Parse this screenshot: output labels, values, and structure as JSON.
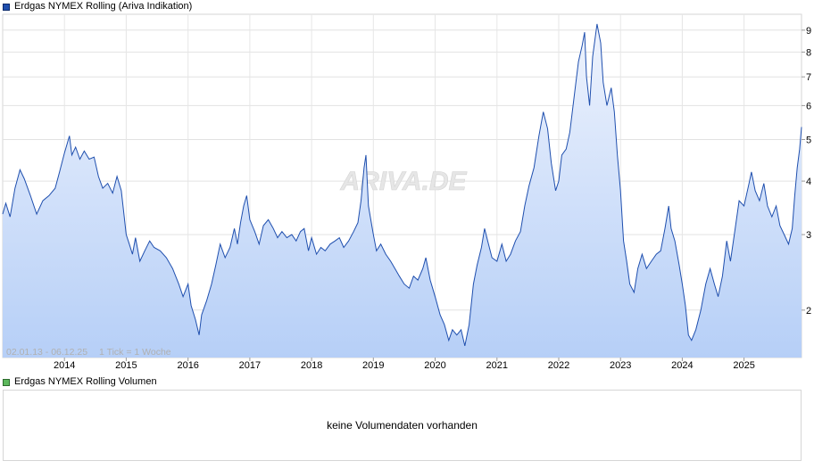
{
  "legend": {
    "price_label": "Erdgas NYMEX Rolling (Ariva Indikation)",
    "price_color": "#1f4fae",
    "volume_label": "Erdgas NYMEX Rolling Volumen",
    "volume_color": "#5cb85c"
  },
  "info": {
    "date_range": "02.01.13 - 06.12.25",
    "tick_info": "1 Tick = 1 Woche"
  },
  "watermark": "ARIVA.DE",
  "volume": {
    "message": "keine Volumendaten vorhanden"
  },
  "chart_data": {
    "type": "area",
    "title": "Erdgas NYMEX Rolling (Ariva Indikation)",
    "y_scale": "log",
    "ylim": [
      1.55,
      9.8
    ],
    "xlim": [
      2013.0,
      2025.93
    ],
    "y_ticks": [
      2,
      3,
      4,
      5,
      6,
      7,
      8,
      9
    ],
    "x_ticks": [
      {
        "label": "2014",
        "x": 2014
      },
      {
        "label": "2015",
        "x": 2015
      },
      {
        "label": "2016",
        "x": 2016
      },
      {
        "label": "2017",
        "x": 2017
      },
      {
        "label": "2018",
        "x": 2018
      },
      {
        "label": "2019",
        "x": 2019
      },
      {
        "label": "2020",
        "x": 2020
      },
      {
        "label": "2021",
        "x": 2021
      },
      {
        "label": "2022",
        "x": 2022
      },
      {
        "label": "2023",
        "x": 2023
      },
      {
        "label": "2024",
        "x": 2024
      },
      {
        "label": "2025",
        "x": 2025
      }
    ],
    "grid": true,
    "series": [
      {
        "name": "Erdgas NYMEX Rolling",
        "color": "#1f4fae",
        "points": [
          [
            2013.0,
            3.35
          ],
          [
            2013.05,
            3.55
          ],
          [
            2013.12,
            3.3
          ],
          [
            2013.2,
            3.85
          ],
          [
            2013.28,
            4.25
          ],
          [
            2013.35,
            4.05
          ],
          [
            2013.45,
            3.7
          ],
          [
            2013.55,
            3.35
          ],
          [
            2013.65,
            3.6
          ],
          [
            2013.75,
            3.7
          ],
          [
            2013.85,
            3.85
          ],
          [
            2013.92,
            4.2
          ],
          [
            2014.0,
            4.65
          ],
          [
            2014.08,
            5.1
          ],
          [
            2014.12,
            4.6
          ],
          [
            2014.18,
            4.8
          ],
          [
            2014.25,
            4.5
          ],
          [
            2014.32,
            4.7
          ],
          [
            2014.4,
            4.5
          ],
          [
            2014.48,
            4.55
          ],
          [
            2014.55,
            4.1
          ],
          [
            2014.62,
            3.85
          ],
          [
            2014.7,
            3.95
          ],
          [
            2014.78,
            3.75
          ],
          [
            2014.85,
            4.1
          ],
          [
            2014.92,
            3.8
          ],
          [
            2015.0,
            3.0
          ],
          [
            2015.05,
            2.85
          ],
          [
            2015.1,
            2.7
          ],
          [
            2015.15,
            2.95
          ],
          [
            2015.22,
            2.6
          ],
          [
            2015.3,
            2.75
          ],
          [
            2015.38,
            2.9
          ],
          [
            2015.45,
            2.8
          ],
          [
            2015.55,
            2.75
          ],
          [
            2015.65,
            2.65
          ],
          [
            2015.75,
            2.5
          ],
          [
            2015.85,
            2.3
          ],
          [
            2015.92,
            2.15
          ],
          [
            2016.0,
            2.3
          ],
          [
            2016.05,
            2.05
          ],
          [
            2016.12,
            1.9
          ],
          [
            2016.18,
            1.75
          ],
          [
            2016.22,
            1.95
          ],
          [
            2016.3,
            2.1
          ],
          [
            2016.38,
            2.3
          ],
          [
            2016.45,
            2.55
          ],
          [
            2016.52,
            2.85
          ],
          [
            2016.6,
            2.65
          ],
          [
            2016.68,
            2.8
          ],
          [
            2016.75,
            3.1
          ],
          [
            2016.8,
            2.85
          ],
          [
            2016.85,
            3.2
          ],
          [
            2016.9,
            3.5
          ],
          [
            2016.95,
            3.7
          ],
          [
            2017.0,
            3.25
          ],
          [
            2017.08,
            3.05
          ],
          [
            2017.15,
            2.85
          ],
          [
            2017.22,
            3.15
          ],
          [
            2017.3,
            3.25
          ],
          [
            2017.38,
            3.1
          ],
          [
            2017.45,
            2.95
          ],
          [
            2017.52,
            3.05
          ],
          [
            2017.6,
            2.95
          ],
          [
            2017.68,
            3.0
          ],
          [
            2017.75,
            2.9
          ],
          [
            2017.82,
            3.05
          ],
          [
            2017.88,
            3.1
          ],
          [
            2017.95,
            2.75
          ],
          [
            2018.0,
            2.95
          ],
          [
            2018.08,
            2.7
          ],
          [
            2018.15,
            2.8
          ],
          [
            2018.22,
            2.75
          ],
          [
            2018.3,
            2.85
          ],
          [
            2018.38,
            2.9
          ],
          [
            2018.45,
            2.95
          ],
          [
            2018.52,
            2.8
          ],
          [
            2018.6,
            2.9
          ],
          [
            2018.68,
            3.05
          ],
          [
            2018.75,
            3.2
          ],
          [
            2018.8,
            3.6
          ],
          [
            2018.85,
            4.3
          ],
          [
            2018.88,
            4.6
          ],
          [
            2018.92,
            3.5
          ],
          [
            2019.0,
            3.0
          ],
          [
            2019.05,
            2.75
          ],
          [
            2019.12,
            2.85
          ],
          [
            2019.2,
            2.7
          ],
          [
            2019.28,
            2.6
          ],
          [
            2019.35,
            2.5
          ],
          [
            2019.42,
            2.4
          ],
          [
            2019.5,
            2.3
          ],
          [
            2019.58,
            2.25
          ],
          [
            2019.65,
            2.4
          ],
          [
            2019.72,
            2.35
          ],
          [
            2019.8,
            2.5
          ],
          [
            2019.85,
            2.65
          ],
          [
            2019.92,
            2.35
          ],
          [
            2020.0,
            2.15
          ],
          [
            2020.08,
            1.95
          ],
          [
            2020.15,
            1.85
          ],
          [
            2020.22,
            1.7
          ],
          [
            2020.28,
            1.8
          ],
          [
            2020.35,
            1.75
          ],
          [
            2020.42,
            1.8
          ],
          [
            2020.48,
            1.65
          ],
          [
            2020.55,
            1.85
          ],
          [
            2020.62,
            2.3
          ],
          [
            2020.68,
            2.55
          ],
          [
            2020.75,
            2.8
          ],
          [
            2020.8,
            3.1
          ],
          [
            2020.85,
            2.9
          ],
          [
            2020.92,
            2.65
          ],
          [
            2021.0,
            2.6
          ],
          [
            2021.08,
            2.85
          ],
          [
            2021.15,
            2.6
          ],
          [
            2021.22,
            2.7
          ],
          [
            2021.3,
            2.9
          ],
          [
            2021.38,
            3.05
          ],
          [
            2021.45,
            3.5
          ],
          [
            2021.52,
            3.9
          ],
          [
            2021.6,
            4.3
          ],
          [
            2021.68,
            5.1
          ],
          [
            2021.75,
            5.8
          ],
          [
            2021.82,
            5.3
          ],
          [
            2021.88,
            4.4
          ],
          [
            2021.95,
            3.8
          ],
          [
            2022.0,
            4.0
          ],
          [
            2022.05,
            4.6
          ],
          [
            2022.12,
            4.75
          ],
          [
            2022.18,
            5.2
          ],
          [
            2022.25,
            6.3
          ],
          [
            2022.32,
            7.6
          ],
          [
            2022.38,
            8.3
          ],
          [
            2022.42,
            8.9
          ],
          [
            2022.45,
            7.0
          ],
          [
            2022.5,
            6.0
          ],
          [
            2022.55,
            7.8
          ],
          [
            2022.62,
            9.3
          ],
          [
            2022.68,
            8.4
          ],
          [
            2022.72,
            6.8
          ],
          [
            2022.78,
            6.0
          ],
          [
            2022.85,
            6.6
          ],
          [
            2022.9,
            5.8
          ],
          [
            2022.95,
            4.6
          ],
          [
            2023.0,
            3.8
          ],
          [
            2023.05,
            2.9
          ],
          [
            2023.1,
            2.6
          ],
          [
            2023.15,
            2.3
          ],
          [
            2023.22,
            2.2
          ],
          [
            2023.28,
            2.5
          ],
          [
            2023.35,
            2.7
          ],
          [
            2023.42,
            2.5
          ],
          [
            2023.5,
            2.6
          ],
          [
            2023.58,
            2.7
          ],
          [
            2023.65,
            2.75
          ],
          [
            2023.72,
            3.1
          ],
          [
            2023.78,
            3.5
          ],
          [
            2023.82,
            3.1
          ],
          [
            2023.88,
            2.9
          ],
          [
            2023.95,
            2.55
          ],
          [
            2024.0,
            2.3
          ],
          [
            2024.05,
            2.05
          ],
          [
            2024.1,
            1.75
          ],
          [
            2024.15,
            1.7
          ],
          [
            2024.22,
            1.8
          ],
          [
            2024.3,
            2.0
          ],
          [
            2024.38,
            2.3
          ],
          [
            2024.45,
            2.5
          ],
          [
            2024.52,
            2.3
          ],
          [
            2024.58,
            2.15
          ],
          [
            2024.65,
            2.4
          ],
          [
            2024.72,
            2.9
          ],
          [
            2024.78,
            2.6
          ],
          [
            2024.85,
            3.05
          ],
          [
            2024.92,
            3.6
          ],
          [
            2025.0,
            3.5
          ],
          [
            2025.08,
            3.95
          ],
          [
            2025.12,
            4.2
          ],
          [
            2025.18,
            3.8
          ],
          [
            2025.25,
            3.6
          ],
          [
            2025.32,
            3.95
          ],
          [
            2025.38,
            3.5
          ],
          [
            2025.45,
            3.3
          ],
          [
            2025.52,
            3.5
          ],
          [
            2025.58,
            3.15
          ],
          [
            2025.65,
            3.0
          ],
          [
            2025.72,
            2.85
          ],
          [
            2025.78,
            3.1
          ],
          [
            2025.82,
            3.7
          ],
          [
            2025.86,
            4.3
          ],
          [
            2025.9,
            4.75
          ],
          [
            2025.93,
            5.35
          ]
        ]
      }
    ]
  }
}
